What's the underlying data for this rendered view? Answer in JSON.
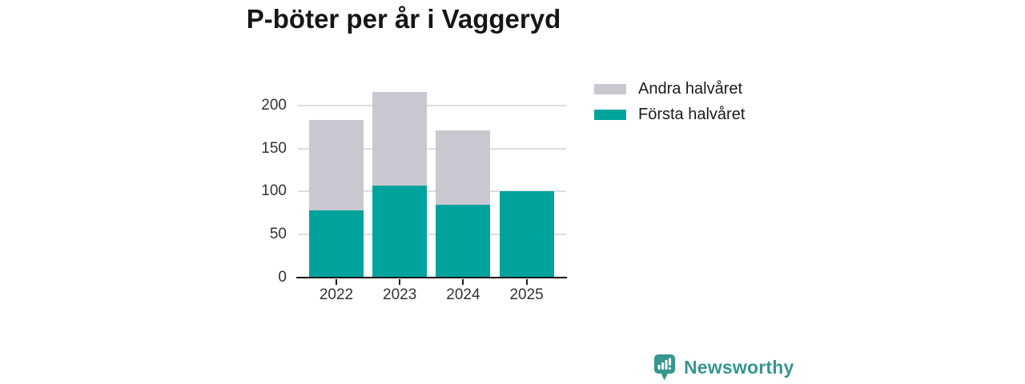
{
  "chart_data": {
    "type": "bar",
    "stacked": true,
    "title": "P-böter per år i Vaggeryd",
    "categories": [
      "2022",
      "2023",
      "2024",
      "2025"
    ],
    "series": [
      {
        "name": "Första halvåret",
        "color": "#00A39C",
        "values": [
          78,
          107,
          84,
          100
        ]
      },
      {
        "name": "Andra halvåret",
        "color": "#C9C8D1",
        "values": [
          105,
          109,
          87,
          0
        ]
      }
    ],
    "totals": [
      183,
      216,
      171,
      100
    ],
    "xlabel": "",
    "ylabel": "",
    "y_ticks": [
      0,
      50,
      100,
      150,
      200
    ],
    "ylim": [
      0,
      220
    ],
    "grid": true,
    "legend_position": "top-right",
    "legend_order": [
      "Andra halvåret",
      "Första halvåret"
    ]
  },
  "brand": {
    "name": "Newsworthy",
    "color": "#37968F",
    "icon": "bar-chart-speech-bubble-icon"
  },
  "style": {
    "grid_color": "#DDDDE2",
    "axis_color": "#1A1A1A",
    "tick_label_color": "#333333",
    "title_color": "#161616",
    "background": "#FFFFFF"
  }
}
